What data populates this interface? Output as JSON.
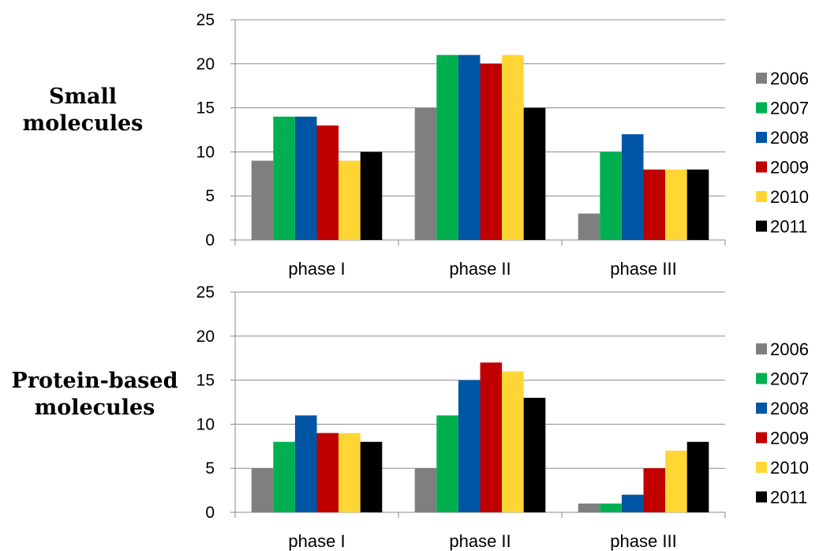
{
  "row_labels": [
    {
      "line1": "Small",
      "line2": "molecules"
    },
    {
      "line1": "Protein-based",
      "line2": "molecules"
    }
  ],
  "chart_data": [
    {
      "type": "bar",
      "title": "",
      "xlabel": "",
      "ylabel": "",
      "categories": [
        "phase I",
        "phase II",
        "phase III"
      ],
      "ylim": [
        0,
        25
      ],
      "yticks": [
        0,
        5,
        10,
        15,
        20,
        25
      ],
      "grid": true,
      "legend_position": "right",
      "series": [
        {
          "name": "2006",
          "color": "#7f7f7f",
          "values": [
            9,
            15,
            3
          ]
        },
        {
          "name": "2007",
          "color": "#00b050",
          "values": [
            14,
            21,
            10
          ]
        },
        {
          "name": "2008",
          "color": "#0055a5",
          "values": [
            14,
            21,
            12
          ]
        },
        {
          "name": "2009",
          "color": "#c00000",
          "values": [
            13,
            20,
            8
          ]
        },
        {
          "name": "2010",
          "color": "#ffd633",
          "values": [
            9,
            21,
            8
          ]
        },
        {
          "name": "2011",
          "color": "#000000",
          "values": [
            10,
            15,
            8
          ]
        }
      ]
    },
    {
      "type": "bar",
      "title": "",
      "xlabel": "",
      "ylabel": "",
      "categories": [
        "phase I",
        "phase II",
        "phase III"
      ],
      "ylim": [
        0,
        25
      ],
      "yticks": [
        0,
        5,
        10,
        15,
        20,
        25
      ],
      "grid": true,
      "legend_position": "right",
      "series": [
        {
          "name": "2006",
          "color": "#7f7f7f",
          "values": [
            5,
            5,
            1
          ]
        },
        {
          "name": "2007",
          "color": "#00b050",
          "values": [
            8,
            11,
            1
          ]
        },
        {
          "name": "2008",
          "color": "#0055a5",
          "values": [
            11,
            15,
            2
          ]
        },
        {
          "name": "2009",
          "color": "#c00000",
          "values": [
            9,
            17,
            5
          ]
        },
        {
          "name": "2010",
          "color": "#ffd633",
          "values": [
            9,
            16,
            7
          ]
        },
        {
          "name": "2011",
          "color": "#000000",
          "values": [
            8,
            13,
            8
          ]
        }
      ]
    }
  ]
}
